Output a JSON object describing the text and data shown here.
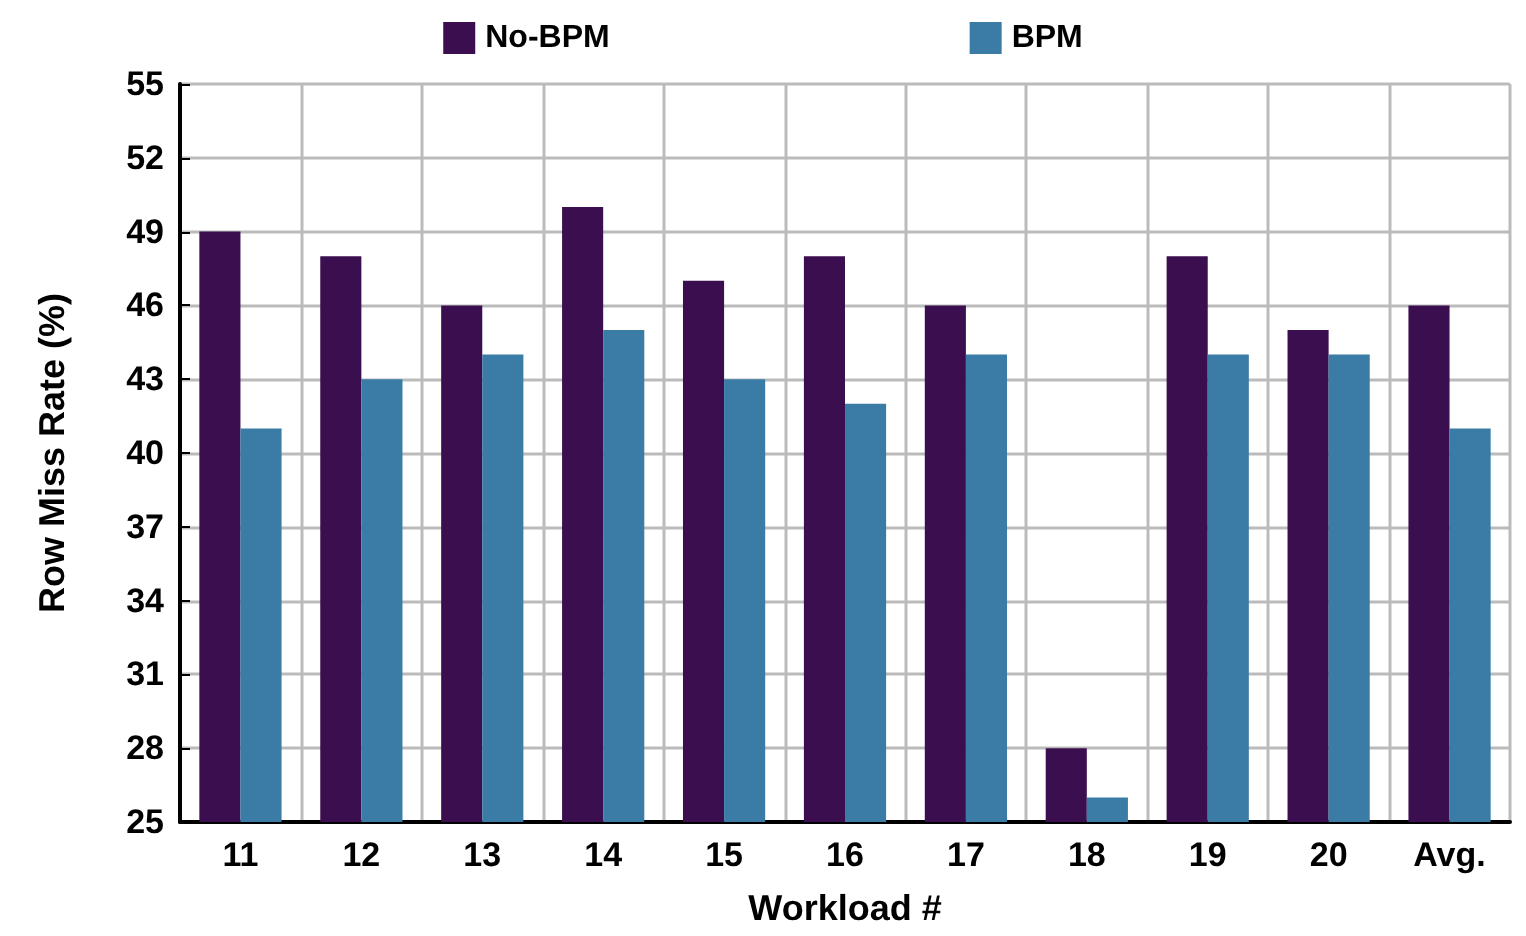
{
  "chart_data": {
    "type": "bar",
    "xlabel": "Workload #",
    "ylabel": "Row Miss Rate (%)",
    "categories": [
      "11",
      "12",
      "13",
      "14",
      "15",
      "16",
      "17",
      "18",
      "19",
      "20",
      "Avg."
    ],
    "series": [
      {
        "name": "No-BPM",
        "color": "#3b0f4f",
        "values": [
          49,
          48,
          46,
          50,
          47,
          48,
          46,
          28,
          48,
          45,
          46
        ]
      },
      {
        "name": "BPM",
        "color": "#3a7ca5",
        "values": [
          41,
          43,
          44,
          45,
          43,
          42,
          44,
          26,
          44,
          44,
          41
        ]
      }
    ],
    "ylim": [
      25,
      55
    ],
    "yticks": [
      25,
      28,
      31,
      34,
      37,
      40,
      43,
      46,
      49,
      52,
      55
    ],
    "grid": true,
    "legend": "top"
  }
}
